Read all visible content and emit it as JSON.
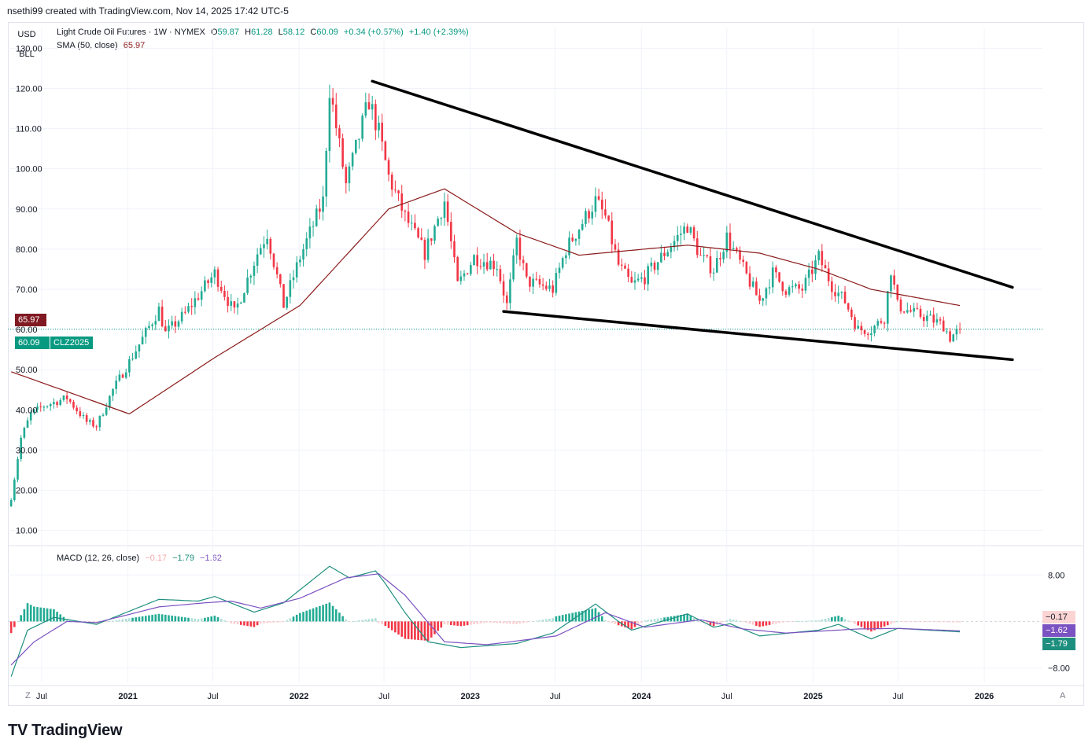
{
  "header": {
    "published": "nsethi99 created with TradingView.com, Nov 14, 2025 17:42 UTC-5"
  },
  "unit_buttons": {
    "currency": "USD",
    "unit": "BLL"
  },
  "legend": {
    "symbol": "Light Crude Oil Futures · 1W · NYMEX",
    "open_label": "O",
    "open": "59.87",
    "high_label": "H",
    "high": "61.28",
    "low_label": "L",
    "low": "58.12",
    "close_label": "C",
    "close": "60.09",
    "change": "+0.34 (+0.57%)",
    "change2": "+1.40 (+2.39%)",
    "sma_label": "SMA (50, close)",
    "sma_value": "65.97",
    "macd_label": "MACD (12, 26, close)",
    "macd_hist": "−0.17",
    "macd_line": "−1.79",
    "macd_signal": "−1.62"
  },
  "badges": {
    "sma": "65.97",
    "price": "60.09",
    "ticker": "CLZ2025",
    "macd_hist": "−0.17",
    "macd_signal": "−1.62",
    "macd_line": "−1.79"
  },
  "corner": {
    "z": "Z",
    "a": "A"
  },
  "brand": {
    "logo": "TV",
    "name": "TradingView"
  },
  "colors": {
    "up": "#22ab94",
    "down": "#f23645",
    "sma": "#8b1a1a",
    "macd": "#1e8f7e",
    "signal": "#7b52c1",
    "trendline": "#000000",
    "grid": "#f0f3fa",
    "price_badge": "#089981",
    "sma_badge": "#801922"
  },
  "chart_data": [
    {
      "type": "candlestick",
      "title": "Light Crude Oil Futures · 1W · NYMEX",
      "ylim": [
        7,
        133
      ],
      "yticks": [
        "130.00",
        "120.00",
        "110.00",
        "100.00",
        "90.00",
        "80.00",
        "70.00",
        "60.00",
        "50.00",
        "40.00",
        "30.00",
        "20.00",
        "10.00"
      ],
      "x_ticks": [
        "Jul",
        "2021",
        "Jul",
        "2022",
        "Jul",
        "2023",
        "Jul",
        "2024",
        "Jul",
        "2025",
        "Jul",
        "2026"
      ],
      "x_tick_dates": [
        "2020-07-01",
        "2021-01-01",
        "2021-07-01",
        "2022-01-01",
        "2022-07-01",
        "2023-01-01",
        "2023-07-01",
        "2024-01-01",
        "2024-07-01",
        "2025-01-01",
        "2025-07-01",
        "2026-01-01"
      ],
      "x_range": [
        "2020-04-20",
        "2026-05-05"
      ],
      "anchors": [
        [
          "2020-04-27",
          18
        ],
        [
          "2020-05-18",
          33
        ],
        [
          "2020-06-08",
          39
        ],
        [
          "2020-07-06",
          41
        ],
        [
          "2020-08-24",
          43
        ],
        [
          "2020-10-05",
          37
        ],
        [
          "2020-10-26",
          36
        ],
        [
          "2020-11-30",
          45
        ],
        [
          "2021-01-04",
          52
        ],
        [
          "2021-03-08",
          65
        ],
        [
          "2021-03-22",
          59
        ],
        [
          "2021-05-03",
          64
        ],
        [
          "2021-07-05",
          74
        ],
        [
          "2021-08-16",
          64
        ],
        [
          "2021-10-04",
          79
        ],
        [
          "2021-10-25",
          84
        ],
        [
          "2021-11-29",
          66
        ],
        [
          "2022-01-03",
          78
        ],
        [
          "2022-02-21",
          92
        ],
        [
          "2022-03-07",
          120
        ],
        [
          "2022-04-11",
          96
        ],
        [
          "2022-05-30",
          117
        ],
        [
          "2022-06-20",
          109
        ],
        [
          "2022-07-11",
          98
        ],
        [
          "2022-08-15",
          88
        ],
        [
          "2022-09-26",
          79
        ],
        [
          "2022-11-07",
          92
        ],
        [
          "2022-12-05",
          71
        ],
        [
          "2023-01-09",
          78
        ],
        [
          "2023-02-27",
          76
        ],
        [
          "2023-03-20",
          66
        ],
        [
          "2023-04-10",
          82
        ],
        [
          "2023-05-01",
          72
        ],
        [
          "2023-06-26",
          70
        ],
        [
          "2023-07-24",
          80
        ],
        [
          "2023-09-25",
          92
        ],
        [
          "2023-10-16",
          88
        ],
        [
          "2023-11-13",
          76
        ],
        [
          "2023-12-11",
          71
        ],
        [
          "2024-01-08",
          73
        ],
        [
          "2024-02-26",
          80
        ],
        [
          "2024-04-08",
          86
        ],
        [
          "2024-05-06",
          78
        ],
        [
          "2024-06-03",
          75
        ],
        [
          "2024-07-01",
          83
        ],
        [
          "2024-08-05",
          75
        ],
        [
          "2024-09-09",
          67
        ],
        [
          "2024-10-07",
          74
        ],
        [
          "2024-11-04",
          70
        ],
        [
          "2024-12-09",
          70
        ],
        [
          "2025-01-13",
          78
        ],
        [
          "2025-02-10",
          71
        ],
        [
          "2025-03-10",
          67
        ],
        [
          "2025-04-07",
          60
        ],
        [
          "2025-05-05",
          60
        ],
        [
          "2025-06-02",
          63
        ],
        [
          "2025-06-16",
          75
        ],
        [
          "2025-06-30",
          66
        ],
        [
          "2025-08-04",
          64
        ],
        [
          "2025-09-01",
          63
        ],
        [
          "2025-10-06",
          61
        ],
        [
          "2025-10-20",
          58
        ],
        [
          "2025-11-10",
          60.09
        ]
      ],
      "series": [
        {
          "name": "SMA (50, close)",
          "values_at": [
            [
              "2020-04-27",
              49.5
            ],
            [
              "2021-01-04",
              39
            ],
            [
              "2021-07-05",
              53
            ],
            [
              "2022-01-03",
              66
            ],
            [
              "2022-07-11",
              90
            ],
            [
              "2022-11-07",
              95
            ],
            [
              "2023-04-10",
              84
            ],
            [
              "2023-08-21",
              78.5
            ],
            [
              "2024-04-08",
              81
            ],
            [
              "2024-09-09",
              79
            ],
            [
              "2025-01-13",
              75
            ],
            [
              "2025-05-05",
              70
            ],
            [
              "2025-11-10",
              65.97
            ]
          ]
        }
      ],
      "annotations": [
        {
          "type": "trendline",
          "from": [
            "2022-06-06",
            121.8
          ],
          "to": [
            "2026-03-02",
            70.5
          ]
        },
        {
          "type": "trendline",
          "from": [
            "2023-03-13",
            64.5
          ],
          "to": [
            "2026-03-02",
            52.5
          ]
        }
      ],
      "last_price": 60.09,
      "sma_last": 65.97
    },
    {
      "type": "macd",
      "title": "MACD (12, 26, close)",
      "ylim": [
        -10.5,
        12.5
      ],
      "yticks": [
        "8.00",
        "−8.00"
      ],
      "macd_anchors": [
        [
          "2020-04-27",
          -9.5
        ],
        [
          "2020-06-01",
          -1.5
        ],
        [
          "2020-07-27",
          0.7
        ],
        [
          "2020-10-26",
          -0.5
        ],
        [
          "2021-03-08",
          3.8
        ],
        [
          "2021-05-31",
          3.5
        ],
        [
          "2021-07-05",
          4.3
        ],
        [
          "2021-09-27",
          1.6
        ],
        [
          "2021-11-29",
          3.2
        ],
        [
          "2022-03-07",
          9.5
        ],
        [
          "2022-04-18",
          7.5
        ],
        [
          "2022-06-13",
          8.7
        ],
        [
          "2022-07-04",
          6.5
        ],
        [
          "2022-08-15",
          1.5
        ],
        [
          "2022-10-03",
          -3.5
        ],
        [
          "2022-12-12",
          -4.5
        ],
        [
          "2023-04-10",
          -3.8
        ],
        [
          "2023-06-26",
          -2
        ],
        [
          "2023-09-25",
          3
        ],
        [
          "2023-11-13",
          0
        ],
        [
          "2023-12-11",
          -1.5
        ],
        [
          "2024-04-08",
          1.3
        ],
        [
          "2024-06-03",
          -1
        ],
        [
          "2024-07-08",
          -0.4
        ],
        [
          "2024-09-09",
          -2.5
        ],
        [
          "2025-01-13",
          -1.5
        ],
        [
          "2025-02-24",
          -0.5
        ],
        [
          "2025-05-05",
          -3
        ],
        [
          "2025-06-30",
          -1.2
        ],
        [
          "2025-11-10",
          -1.79
        ]
      ],
      "signal_anchors": [
        [
          "2020-04-27",
          -7.5
        ],
        [
          "2020-06-15",
          -3.5
        ],
        [
          "2020-08-24",
          0
        ],
        [
          "2020-10-26",
          -0.2
        ],
        [
          "2021-03-08",
          2.5
        ],
        [
          "2021-06-14",
          3.2
        ],
        [
          "2021-08-09",
          3.5
        ],
        [
          "2021-10-11",
          2.3
        ],
        [
          "2022-01-03",
          4
        ],
        [
          "2022-04-11",
          7.5
        ],
        [
          "2022-06-20",
          8.2
        ],
        [
          "2022-08-15",
          4.5
        ],
        [
          "2022-11-07",
          -3.5
        ],
        [
          "2023-02-06",
          -4
        ],
        [
          "2023-07-03",
          -2.5
        ],
        [
          "2023-10-16",
          1.5
        ],
        [
          "2024-01-08",
          -1
        ],
        [
          "2024-05-06",
          0.3
        ],
        [
          "2024-08-05",
          -1.3
        ],
        [
          "2024-11-04",
          -2
        ],
        [
          "2025-04-07",
          -1.3
        ],
        [
          "2025-06-30",
          -1.2
        ],
        [
          "2025-11-10",
          -1.62
        ]
      ],
      "last_hist": -0.17,
      "last_macd": -1.79,
      "last_signal": -1.62
    }
  ]
}
